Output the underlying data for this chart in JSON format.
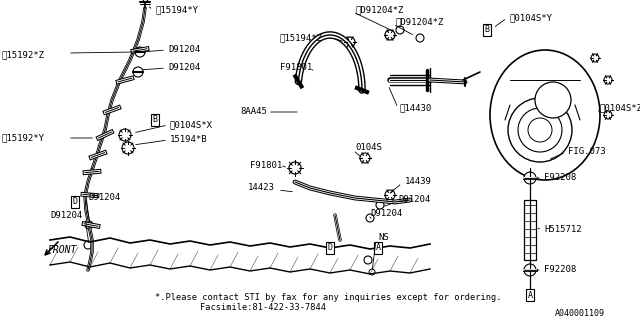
{
  "background_color": "#ffffff",
  "line_color": "#000000",
  "text_color": "#000000",
  "footer_text": "*.Please contact STI by fax for any inquiries except for ordering.",
  "footer_text2": "Facsimile:81-422-33-7844",
  "doc_number": "A040001109",
  "figsize": [
    6.4,
    3.2
  ],
  "dpi": 100
}
